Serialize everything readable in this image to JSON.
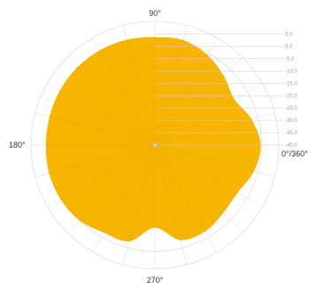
{
  "chart_data": {
    "type": "polar-area",
    "title": "",
    "angle_labels": {
      "a0": "0°/360°",
      "a90": "90°",
      "a180": "180°",
      "a270": "270°"
    },
    "radial_ticks": [
      "5.0",
      "0.0",
      "-5.0",
      "-10.0",
      "-15.0",
      "-20.0",
      "-25.0",
      "-30.0",
      "-35.0",
      "-40.0"
    ],
    "radial_range": [
      -40,
      5
    ],
    "fill_color": "#f7b500",
    "series": [
      {
        "angles_deg": [
          0,
          15,
          30,
          45,
          60,
          75,
          90,
          105,
          120,
          135,
          150,
          165,
          180,
          195,
          210,
          225,
          240,
          255,
          270,
          285,
          300,
          315,
          330,
          345
        ],
        "values_db": [
          -1.7,
          -3.8,
          -6.8,
          -4.7,
          -2.2,
          -0.6,
          -0.9,
          -0.5,
          -0.3,
          -0.2,
          -0.3,
          -0.5,
          -0.5,
          -0.3,
          -0.6,
          -1.3,
          -3.2,
          -3.8,
          -10.0,
          -4.3,
          -3.7,
          -5.1,
          -5.4,
          -2.9
        ]
      }
    ]
  }
}
